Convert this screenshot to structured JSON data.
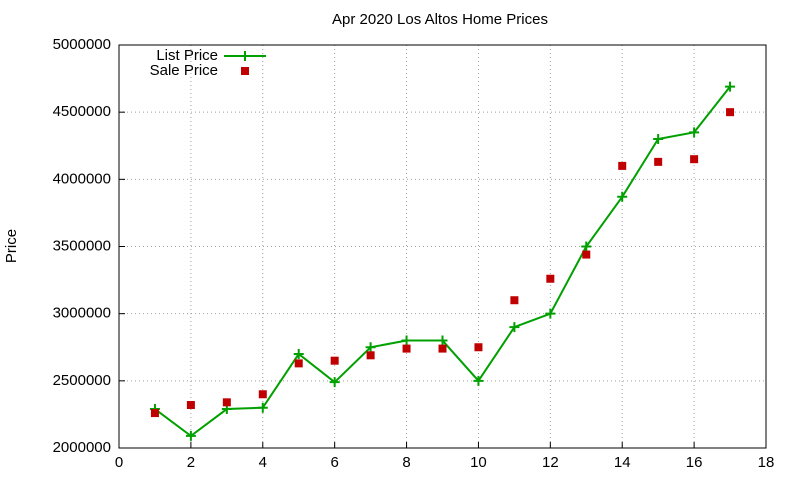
{
  "chart_data": {
    "type": "line",
    "title": "Apr 2020 Los Altos Home Prices",
    "y_label": "Price",
    "x": [
      1,
      2,
      3,
      4,
      5,
      6,
      7,
      8,
      9,
      10,
      11,
      12,
      13,
      14,
      15,
      16,
      17
    ],
    "series": [
      {
        "name": "List Price",
        "color": "#00a000",
        "style": "line-points",
        "values": [
          2290000,
          2090000,
          2290000,
          2300000,
          2700000,
          2490000,
          2750000,
          2800000,
          2800000,
          2500000,
          2900000,
          3000000,
          3500000,
          3870000,
          4300000,
          4350000,
          4690000
        ]
      },
      {
        "name": "Sale Price",
        "color": "#c00000",
        "style": "points",
        "values": [
          2260000,
          2320000,
          2340000,
          2400000,
          2630000,
          2650000,
          2690000,
          2740000,
          2740000,
          2750000,
          3100000,
          3260000,
          3440000,
          4100000,
          4130000,
          4150000,
          4500000
        ]
      }
    ],
    "xlim": [
      0,
      18
    ],
    "xticks": [
      0,
      2,
      4,
      6,
      8,
      10,
      12,
      14,
      16,
      18
    ],
    "ylim": [
      2000000,
      5000000
    ],
    "yticks": [
      2000000,
      2500000,
      3000000,
      3500000,
      4000000,
      4500000,
      5000000
    ],
    "grid": true,
    "legend": "top-left"
  }
}
